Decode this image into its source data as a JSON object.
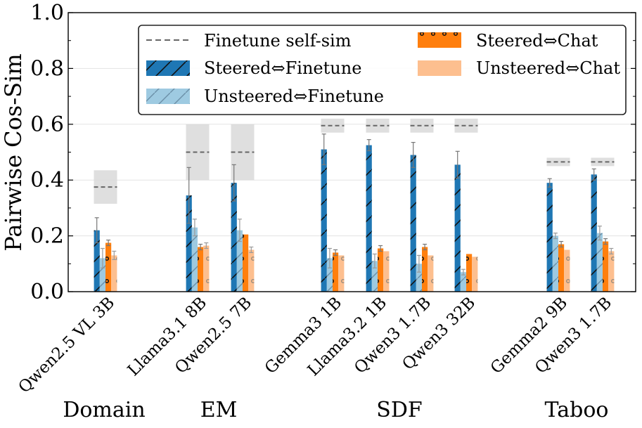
{
  "chart_data": {
    "type": "bar",
    "ylabel": "Pairwise Cos-Sim",
    "ylim": [
      0,
      1.0
    ],
    "yticks": [
      "0.0",
      "0.2",
      "0.4",
      "0.6",
      "0.8",
      "1.0"
    ],
    "grid": true,
    "legend_position": "top-right",
    "legend": {
      "selfsim": "Finetune self-sim",
      "steered_ft": "Steered⇔Finetune",
      "unsteered_ft": "Unsteered⇔Finetune",
      "steered_chat": "Steered⇔Chat",
      "unsteered_chat": "Unsteered⇔Chat"
    },
    "colors": {
      "steered_ft": "#1f77b4",
      "unsteered_ft": "#9ecae1",
      "steered_chat": "#ff7f0e",
      "unsteered_chat": "#fdbf8f",
      "selfsim_band": "#d9d9d9",
      "selfsim_line": "#666666"
    },
    "groups": [
      {
        "label": "Domain",
        "models": [
          {
            "name": "Qwen2.5 VL 3B",
            "selfsim": 0.375,
            "selfsim_range": [
              0.315,
              0.435
            ],
            "steered_ft": 0.22,
            "steered_ft_err": 0.045,
            "unsteered_ft": 0.12,
            "unsteered_ft_err": 0.035,
            "steered_chat": 0.175,
            "steered_chat_err": 0.01,
            "unsteered_chat": 0.13,
            "unsteered_chat_err": 0.015
          }
        ]
      },
      {
        "label": "EM",
        "models": [
          {
            "name": "Llama3.1 8B",
            "selfsim": 0.5,
            "selfsim_range": [
              0.4,
              0.6
            ],
            "steered_ft": 0.345,
            "steered_ft_err": 0.1,
            "unsteered_ft": 0.23,
            "unsteered_ft_err": 0.03,
            "steered_chat": 0.16,
            "steered_chat_err": 0.01,
            "unsteered_chat": 0.165,
            "unsteered_chat_err": 0.01
          },
          {
            "name": "Qwen2.5 7B",
            "selfsim": 0.5,
            "selfsim_range": [
              0.4,
              0.6
            ],
            "steered_ft": 0.39,
            "steered_ft_err": 0.065,
            "unsteered_ft": 0.22,
            "unsteered_ft_err": 0.04,
            "steered_chat": 0.205,
            "steered_chat_err": 0.0,
            "unsteered_chat": 0.15,
            "unsteered_chat_err": 0.01
          }
        ]
      },
      {
        "label": "SDF",
        "models": [
          {
            "name": "Gemma3 1B",
            "selfsim": 0.595,
            "selfsim_range": [
              0.57,
              0.62
            ],
            "steered_ft": 0.51,
            "steered_ft_err": 0.055,
            "unsteered_ft": 0.12,
            "unsteered_ft_err": 0.035,
            "steered_chat": 0.14,
            "steered_chat_err": 0.01,
            "unsteered_chat": 0.13,
            "unsteered_chat_err": 0.0
          },
          {
            "name": "Llama3.2 1B",
            "selfsim": 0.595,
            "selfsim_range": [
              0.57,
              0.62
            ],
            "steered_ft": 0.525,
            "steered_ft_err": 0.02,
            "unsteered_ft": 0.11,
            "unsteered_ft_err": 0.025,
            "steered_chat": 0.155,
            "steered_chat_err": 0.01,
            "unsteered_chat": 0.145,
            "unsteered_chat_err": 0.0
          },
          {
            "name": "Qwen3 1.7B",
            "selfsim": 0.595,
            "selfsim_range": [
              0.57,
              0.62
            ],
            "steered_ft": 0.49,
            "steered_ft_err": 0.045,
            "unsteered_ft": 0.1,
            "unsteered_ft_err": 0.03,
            "steered_chat": 0.16,
            "steered_chat_err": 0.01,
            "unsteered_chat": 0.13,
            "unsteered_chat_err": 0.0
          },
          {
            "name": "Qwen3 32B",
            "selfsim": 0.595,
            "selfsim_range": [
              0.57,
              0.62
            ],
            "steered_ft": 0.455,
            "steered_ft_err": 0.048,
            "unsteered_ft": 0.07,
            "unsteered_ft_err": 0.01,
            "steered_chat": 0.135,
            "steered_chat_err": 0.0,
            "unsteered_chat": 0.125,
            "unsteered_chat_err": 0.0
          }
        ]
      },
      {
        "label": "Taboo",
        "models": [
          {
            "name": "Gemma2 9B",
            "selfsim": 0.465,
            "selfsim_range": [
              0.45,
              0.48
            ],
            "steered_ft": 0.39,
            "steered_ft_err": 0.015,
            "unsteered_ft": 0.2,
            "unsteered_ft_err": 0.01,
            "steered_chat": 0.17,
            "steered_chat_err": 0.01,
            "unsteered_chat": 0.15,
            "unsteered_chat_err": 0.0
          },
          {
            "name": "Qwen3 1.7B",
            "selfsim": 0.465,
            "selfsim_range": [
              0.45,
              0.48
            ],
            "steered_ft": 0.42,
            "steered_ft_err": 0.02,
            "unsteered_ft": 0.21,
            "unsteered_ft_err": 0.025,
            "steered_chat": 0.18,
            "steered_chat_err": 0.01,
            "unsteered_chat": 0.145,
            "unsteered_chat_err": 0.01
          }
        ]
      }
    ]
  }
}
